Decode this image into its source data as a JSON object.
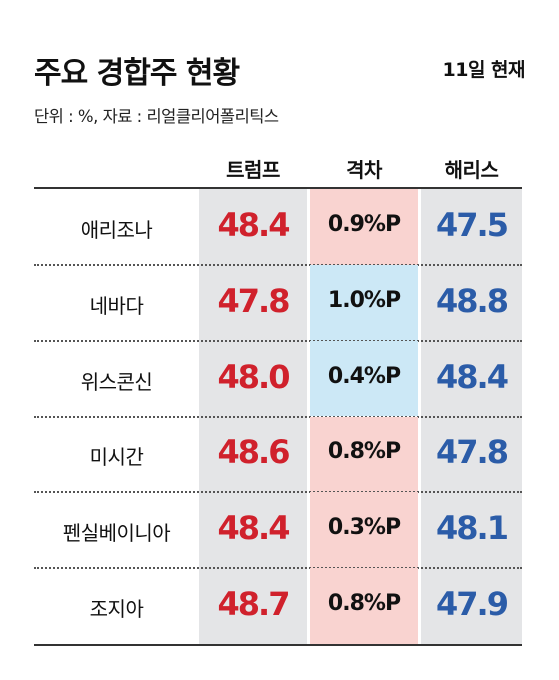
{
  "title": "주요 경합주 현황",
  "date_note": "11일 현재",
  "source_note": "단위 : %, 자료 : 리얼클리어폴리틱스",
  "colors": {
    "trump": "#d0212c",
    "harris": "#2b5ca8",
    "gap_trump_lead": "#f9d3d0",
    "gap_harris_lead": "#cce8f6"
  },
  "chart_data": {
    "type": "table",
    "columns": [
      "트럼프",
      "격차",
      "해리스"
    ],
    "rows": [
      {
        "state": "애리조나",
        "trump": "48.4",
        "gap": "0.9%P",
        "harris": "47.5",
        "leader": "trump"
      },
      {
        "state": "네바다",
        "trump": "47.8",
        "gap": "1.0%P",
        "harris": "48.8",
        "leader": "harris"
      },
      {
        "state": "위스콘신",
        "trump": "48.0",
        "gap": "0.4%P",
        "harris": "48.4",
        "leader": "harris"
      },
      {
        "state": "미시간",
        "trump": "48.6",
        "gap": "0.8%P",
        "harris": "47.8",
        "leader": "trump"
      },
      {
        "state": "펜실베이니아",
        "trump": "48.4",
        "gap": "0.3%P",
        "harris": "48.1",
        "leader": "trump"
      },
      {
        "state": "조지아",
        "trump": "48.7",
        "gap": "0.8%P",
        "harris": "47.9",
        "leader": "trump"
      }
    ]
  }
}
